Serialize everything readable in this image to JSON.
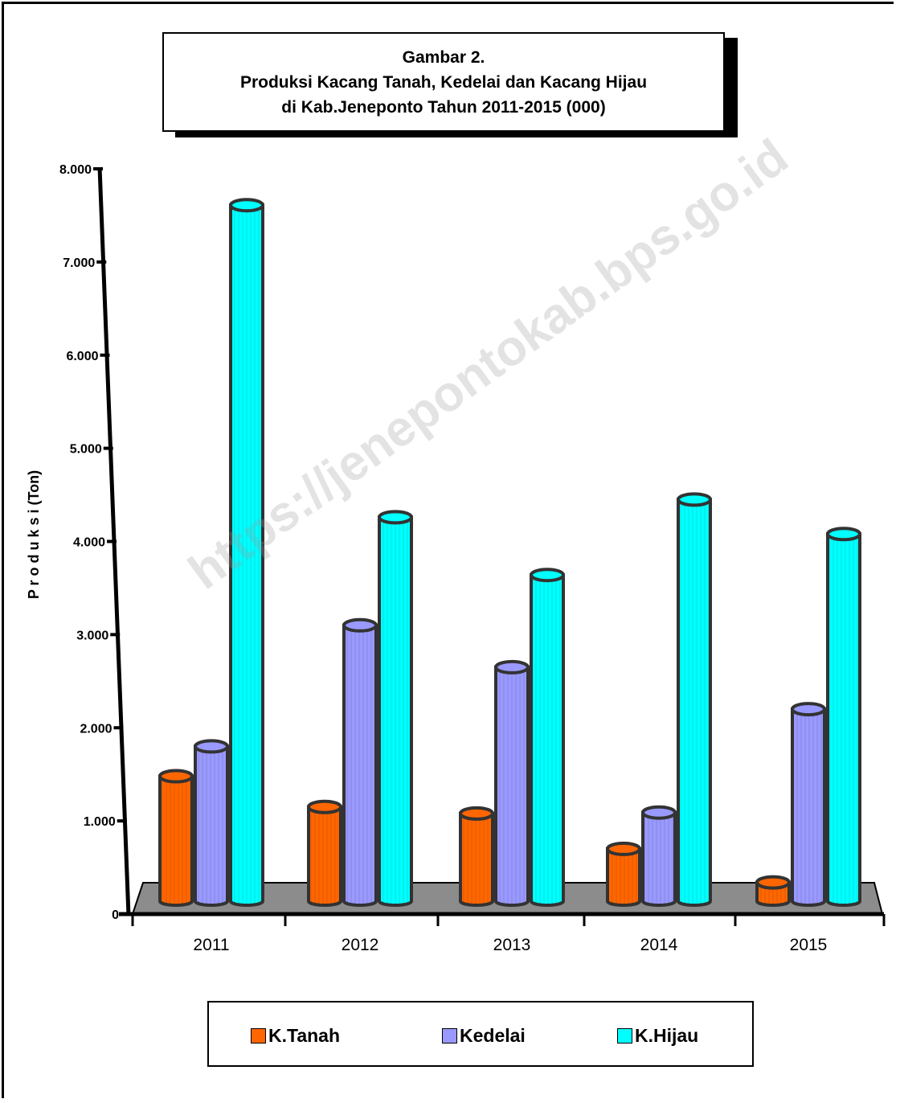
{
  "title": {
    "line1": "Gambar 2.",
    "line2": "Produksi Kacang Tanah, Kedelai dan Kacang Hijau",
    "line3": "di Kab.Jeneponto Tahun 2011-2015 (000)"
  },
  "watermark": "https://jenepontokab.bps.go.id",
  "chart_data": {
    "type": "bar",
    "title": "Gambar 2. Produksi Kacang Tanah, Kedelai dan Kacang Hijau di Kab.Jeneponto Tahun 2011-2015 (000)",
    "xlabel": "",
    "ylabel": "P r o d u k s i  (Ton)",
    "ylim": [
      0,
      8000
    ],
    "yticks": [
      0,
      1000,
      2000,
      3000,
      4000,
      5000,
      6000,
      7000,
      8000
    ],
    "ytick_labels": [
      "0",
      "1.000",
      "2.000",
      "3.000",
      "4.000",
      "5.000",
      "6.000",
      "7.000",
      "8.000"
    ],
    "categories": [
      "2011",
      "2012",
      "2013",
      "2014",
      "2015"
    ],
    "series": [
      {
        "name": "K.Tanah",
        "color": "#FF6600",
        "values": [
          1480,
          1150,
          1080,
          700,
          340
        ]
      },
      {
        "name": "Kedelai",
        "color": "#9999FF",
        "values": [
          1800,
          3100,
          2650,
          1090,
          2200
        ]
      },
      {
        "name": "K.Hijau",
        "color": "#00FFFF",
        "values": [
          7610,
          4260,
          3640,
          4450,
          4080
        ]
      }
    ],
    "legend": "bottom",
    "grid": false
  }
}
